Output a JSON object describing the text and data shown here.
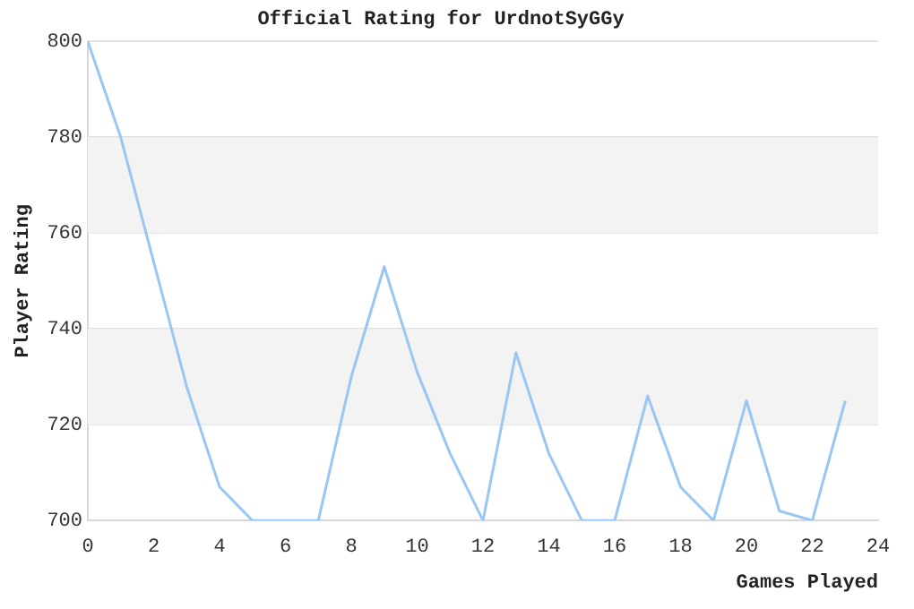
{
  "chart_data": {
    "type": "line",
    "title": "Official Rating for UrdnotSyGGy",
    "xlabel": "Games Played",
    "ylabel": "Player Rating",
    "x": [
      0,
      1,
      2,
      3,
      4,
      5,
      6,
      7,
      8,
      9,
      10,
      11,
      12,
      13,
      14,
      15,
      16,
      17,
      18,
      19,
      20,
      21,
      22,
      23
    ],
    "series": [
      {
        "color": "#99c6f5",
        "values": [
          800,
          780,
          754,
          728,
          707,
          700,
          700,
          700,
          730,
          753,
          731,
          714,
          700,
          735,
          714,
          700,
          700,
          726,
          707,
          700,
          725,
          702,
          700,
          725
        ]
      }
    ],
    "xlim": [
      0,
      24
    ],
    "xticks": [
      0,
      2,
      4,
      6,
      8,
      10,
      12,
      14,
      16,
      18,
      20,
      22,
      24
    ],
    "ylim": [
      700,
      800
    ],
    "yticks": [
      700,
      720,
      740,
      760,
      780,
      800
    ],
    "bands": [
      {
        "axis": "y",
        "from": 720,
        "to": 740,
        "color": "#f3f3f3"
      },
      {
        "axis": "y",
        "from": 760,
        "to": 780,
        "color": "#f3f3f3"
      }
    ],
    "grid": "y",
    "legend": false,
    "marker": "none"
  }
}
